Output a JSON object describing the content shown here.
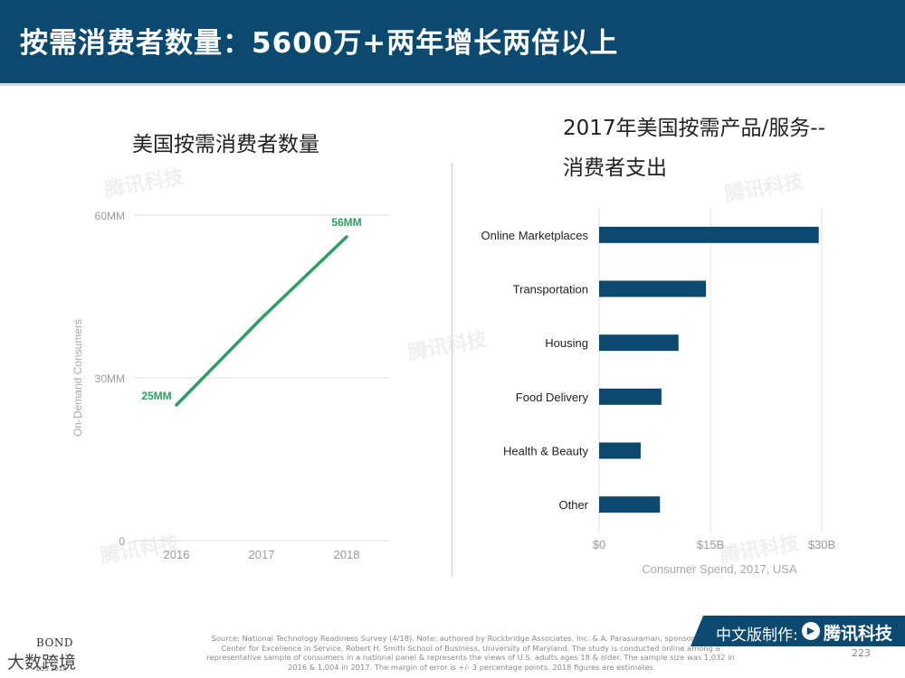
{
  "header": {
    "title": "按需消费者数量：5600万+两年增长两倍以上"
  },
  "chart_data": [
    {
      "type": "line",
      "title": "美国按需消费者数量",
      "ylabel": "On-Demand Consumers",
      "x": [
        "2016",
        "2017",
        "2018"
      ],
      "series": [
        {
          "values": [
            25,
            41,
            56
          ],
          "color": "#2e9e63"
        }
      ],
      "ylim": [
        0,
        60
      ],
      "yticks": [
        0,
        30,
        60
      ],
      "ytick_labels": [
        "0",
        "30MM",
        "60MM"
      ],
      "data_labels": [
        "25MM",
        "",
        "56MM"
      ],
      "grid": true
    },
    {
      "type": "bar",
      "orientation": "horizontal",
      "title": "2017年美国按需产品/服务--消费者支出",
      "xlabel": "Consumer Spend, 2017, USA",
      "categories": [
        "Online Marketplaces",
        "Transportation",
        "Housing",
        "Food Delivery",
        "Health & Beauty",
        "Other"
      ],
      "values": [
        29.6,
        14.4,
        10.7,
        8.4,
        5.6,
        8.2
      ],
      "xlim": [
        0,
        30
      ],
      "xticks": [
        0,
        15,
        30
      ],
      "xtick_labels": [
        "$0",
        "$15B",
        "$30B"
      ],
      "color": "#0b4a6e",
      "grid": true
    }
  ],
  "footer": {
    "credit": "中文版制作:",
    "brand": "腾讯科技",
    "page": "223",
    "source": "Source: National Technology Readiness Survey (4/18). Note: authored by Rockbridge Associates, Inc. & A. Parasuraman, sponsored by the Center for Excellence in Service, Robert H. Smith School of Business, University of Maryland. The study is conducted online among a representative sample of consumers in a national panel & represents the views of U.S. adults ages 18 & older. The sample size was 1,032 in 2016 & 1,004 in 2017. The margin of error is +/- 3 percentage points. 2018 figures are estimates",
    "bond": "BOND",
    "bond_sub": "LOS 2018",
    "corner_watermark": "大数跨境"
  },
  "watermark_text": "腾讯科技",
  "colors": {
    "header_bg": "#0b4a6e",
    "line": "#2e9e63",
    "bar": "#0b4a6e"
  }
}
